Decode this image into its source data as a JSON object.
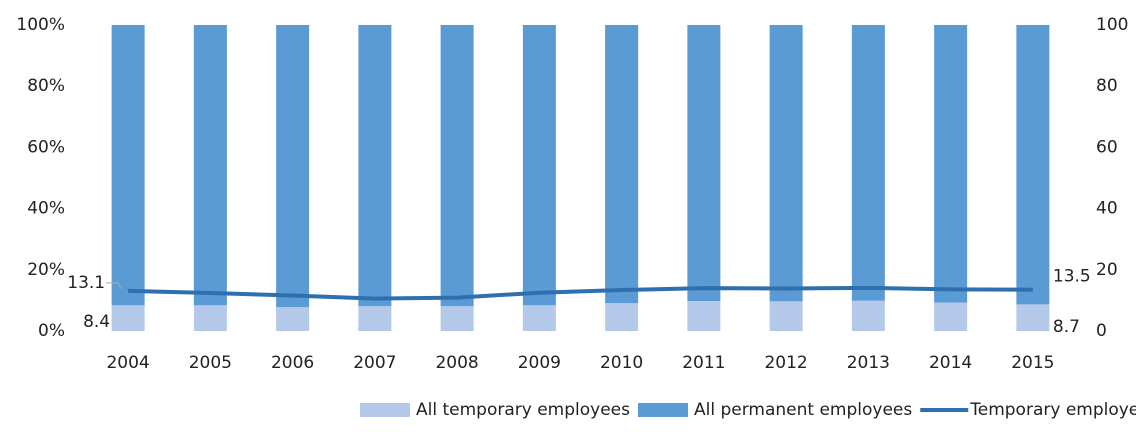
{
  "chart_data": {
    "type": "bar_line",
    "categories": [
      "2004",
      "2005",
      "2006",
      "2007",
      "2008",
      "2009",
      "2010",
      "2011",
      "2012",
      "2013",
      "2014",
      "2015"
    ],
    "series": [
      {
        "name": "All temporary employees",
        "color": "#b4c9ea",
        "type": "bar",
        "values": [
          8.4,
          8.4,
          7.8,
          8.1,
          8.1,
          8.4,
          9.1,
          9.8,
          9.7,
          9.9,
          9.3,
          8.7
        ],
        "value_labels": [
          "8.4",
          null,
          null,
          null,
          null,
          null,
          null,
          null,
          null,
          null,
          null,
          "8.7"
        ]
      },
      {
        "name": "All permanent employees",
        "color": "#5b9bd5",
        "type": "bar",
        "values": [
          91.6,
          91.6,
          92.2,
          91.9,
          91.9,
          91.6,
          90.9,
          90.2,
          90.3,
          90.1,
          90.7,
          91.3
        ]
      },
      {
        "name": "Temporary employees (Elementary)",
        "color": "#2e6fad",
        "type": "line",
        "axis": "y2",
        "values": [
          13.1,
          12.4,
          11.6,
          10.6,
          10.9,
          12.5,
          13.4,
          14.0,
          13.9,
          14.1,
          13.6,
          13.5
        ],
        "value_labels": [
          "13.1",
          null,
          null,
          null,
          null,
          null,
          null,
          null,
          null,
          null,
          null,
          "13.5"
        ]
      }
    ],
    "stacked": true,
    "ylim": [
      0,
      100
    ],
    "yticks": [
      {
        "value": 0,
        "label": "0%"
      },
      {
        "value": 20,
        "label": "20%"
      },
      {
        "value": 40,
        "label": "40%"
      },
      {
        "value": 60,
        "label": "60%"
      },
      {
        "value": 80,
        "label": "80%"
      },
      {
        "value": 100,
        "label": "100%"
      }
    ],
    "y2lim": [
      0,
      100
    ],
    "y2ticks": [
      0,
      20,
      40,
      60,
      80,
      100
    ],
    "grid": false,
    "legend": "bottom"
  }
}
